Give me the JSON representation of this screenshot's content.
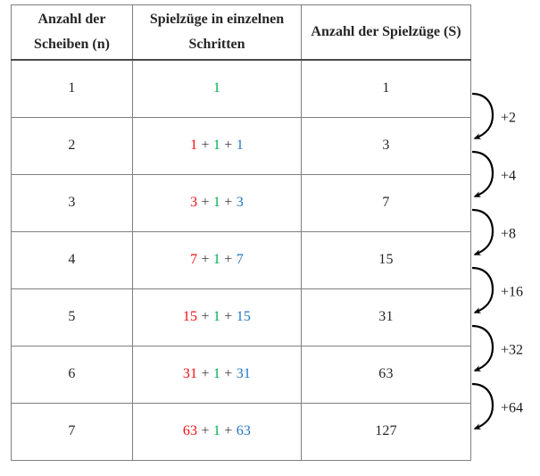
{
  "figure": {
    "description_locale": "de",
    "background": "#ffffff"
  },
  "colors": {
    "red": "#f40f12",
    "green": "#00b050",
    "blue": "#2276c3",
    "black": "#3a3a3a",
    "text": "#262626",
    "grid": "#7f7f7f",
    "header_rule": "#4a4a4a",
    "arrow": "#000000"
  },
  "table": {
    "headers": [
      {
        "label": "Anzahl der Scheiben (n)"
      },
      {
        "label": "Spielzüge in einzelnen Schritten"
      },
      {
        "label": "Anzahl der Spielzüge (S)"
      }
    ],
    "rows": [
      {
        "n": "1",
        "steps": [
          {
            "t": "1",
            "c": "green"
          }
        ],
        "total": "1"
      },
      {
        "n": "2",
        "steps": [
          {
            "t": "1",
            "c": "red"
          },
          {
            "t": " + ",
            "c": "black"
          },
          {
            "t": "1",
            "c": "green"
          },
          {
            "t": " + ",
            "c": "black"
          },
          {
            "t": "1",
            "c": "blue"
          }
        ],
        "total": "3"
      },
      {
        "n": "3",
        "steps": [
          {
            "t": "3",
            "c": "red"
          },
          {
            "t": " + ",
            "c": "black"
          },
          {
            "t": "1",
            "c": "green"
          },
          {
            "t": " + ",
            "c": "black"
          },
          {
            "t": "3",
            "c": "blue"
          }
        ],
        "total": "7"
      },
      {
        "n": "4",
        "steps": [
          {
            "t": "7",
            "c": "red"
          },
          {
            "t": " + ",
            "c": "black"
          },
          {
            "t": "1",
            "c": "green"
          },
          {
            "t": " + ",
            "c": "black"
          },
          {
            "t": "7",
            "c": "blue"
          }
        ],
        "total": "15"
      },
      {
        "n": "5",
        "steps": [
          {
            "t": "15",
            "c": "red"
          },
          {
            "t": " + ",
            "c": "black"
          },
          {
            "t": "1",
            "c": "green"
          },
          {
            "t": " + ",
            "c": "black"
          },
          {
            "t": "15",
            "c": "blue"
          }
        ],
        "total": "31"
      },
      {
        "n": "6",
        "steps": [
          {
            "t": "31",
            "c": "red"
          },
          {
            "t": " + ",
            "c": "black"
          },
          {
            "t": "1",
            "c": "green"
          },
          {
            "t": " + ",
            "c": "black"
          },
          {
            "t": "31",
            "c": "blue"
          }
        ],
        "total": "63"
      },
      {
        "n": "7",
        "steps": [
          {
            "t": "63",
            "c": "red"
          },
          {
            "t": " + ",
            "c": "black"
          },
          {
            "t": "1",
            "c": "green"
          },
          {
            "t": " + ",
            "c": "black"
          },
          {
            "t": "63",
            "c": "blue"
          }
        ],
        "total": "127"
      }
    ]
  },
  "arrows": [
    {
      "label": "+2"
    },
    {
      "label": "+4"
    },
    {
      "label": "+8"
    },
    {
      "label": "+16"
    },
    {
      "label": "+32"
    },
    {
      "label": "+64"
    }
  ]
}
